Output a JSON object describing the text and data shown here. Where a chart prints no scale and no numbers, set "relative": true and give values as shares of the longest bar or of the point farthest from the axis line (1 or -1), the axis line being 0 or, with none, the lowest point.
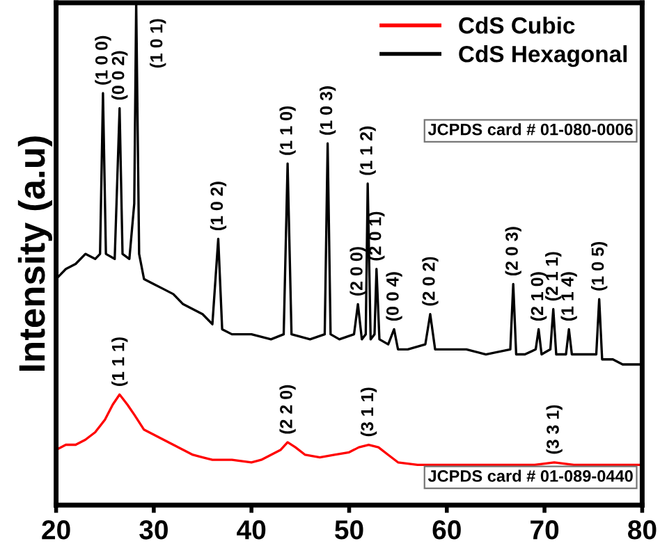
{
  "chart_data": {
    "type": "line",
    "relative": true,
    "ylabel": "Intensity (a.u)",
    "xlim": [
      20,
      80
    ],
    "xticks": [
      20,
      30,
      40,
      50,
      60,
      70,
      80
    ],
    "legend": "top right",
    "grid": false,
    "series": [
      {
        "name": "CdS Cubic",
        "color": "#ff0000",
        "x": [
          20,
          21,
          22,
          23,
          24,
          25,
          25.8,
          26.5,
          27.3,
          28,
          29,
          30,
          31,
          32,
          33,
          34,
          35,
          36,
          38,
          40,
          41,
          42,
          43,
          43.7,
          44.5,
          45.5,
          47,
          48.5,
          50,
          51,
          52,
          53,
          54,
          55,
          57,
          60,
          63,
          66,
          69,
          71,
          73,
          76,
          80
        ],
        "values": [
          0.11,
          0.12,
          0.12,
          0.13,
          0.145,
          0.17,
          0.2,
          0.22,
          0.2,
          0.18,
          0.15,
          0.14,
          0.13,
          0.12,
          0.11,
          0.1,
          0.095,
          0.09,
          0.09,
          0.085,
          0.09,
          0.1,
          0.11,
          0.125,
          0.115,
          0.1,
          0.095,
          0.1,
          0.105,
          0.115,
          0.12,
          0.115,
          0.1,
          0.085,
          0.08,
          0.08,
          0.08,
          0.08,
          0.08,
          0.085,
          0.08,
          0.08,
          0.08
        ]
      },
      {
        "name": "CdS Hexagonal",
        "color": "#000000",
        "x": [
          20,
          21,
          22,
          23,
          24,
          24.5,
          24.8,
          25.1,
          26,
          26.5,
          26.8,
          27.5,
          28,
          28.2,
          28.5,
          29,
          30,
          31,
          32,
          33,
          34,
          35,
          36,
          36.6,
          37,
          38,
          40,
          42,
          43.3,
          43.7,
          44.1,
          46,
          47.5,
          47.8,
          48.1,
          49,
          50.5,
          50.9,
          51.3,
          51.7,
          51.9,
          52.2,
          52.6,
          52.8,
          53.1,
          54,
          54.6,
          55,
          56,
          57.8,
          58.3,
          58.8,
          60,
          62,
          64,
          66.5,
          66.8,
          67.1,
          68,
          69.1,
          69.4,
          69.7,
          70.6,
          70.9,
          71.2,
          72.2,
          72.5,
          72.8,
          74,
          75.3,
          75.6,
          75.9,
          77,
          78,
          80
        ],
        "values": [
          0.45,
          0.47,
          0.48,
          0.5,
          0.49,
          0.5,
          0.82,
          0.5,
          0.49,
          0.79,
          0.5,
          0.49,
          0.6,
          1.0,
          0.5,
          0.45,
          0.44,
          0.43,
          0.42,
          0.4,
          0.39,
          0.38,
          0.36,
          0.53,
          0.35,
          0.34,
          0.34,
          0.33,
          0.34,
          0.68,
          0.34,
          0.33,
          0.34,
          0.72,
          0.34,
          0.33,
          0.34,
          0.4,
          0.33,
          0.34,
          0.64,
          0.33,
          0.34,
          0.47,
          0.33,
          0.32,
          0.35,
          0.31,
          0.31,
          0.32,
          0.38,
          0.31,
          0.31,
          0.31,
          0.3,
          0.31,
          0.44,
          0.3,
          0.3,
          0.31,
          0.35,
          0.3,
          0.31,
          0.39,
          0.3,
          0.3,
          0.35,
          0.3,
          0.3,
          0.3,
          0.41,
          0.29,
          0.29,
          0.28,
          0.28
        ]
      }
    ],
    "annotations": [
      {
        "text": "(1 0 0)",
        "x": 24.8,
        "y": 0.82
      },
      {
        "text": "(0 0 2)",
        "x": 26.5,
        "y": 0.79
      },
      {
        "text": "(1 0 1)",
        "x": 28.2,
        "y": 1.0
      },
      {
        "text": "(1 0 2)",
        "x": 36.6,
        "y": 0.53
      },
      {
        "text": "(1 1 0)",
        "x": 43.7,
        "y": 0.68
      },
      {
        "text": "(1 0 3)",
        "x": 47.8,
        "y": 0.72
      },
      {
        "text": "(2 0 0)",
        "x": 50.9,
        "y": 0.4
      },
      {
        "text": "(1 1 2)",
        "x": 51.9,
        "y": 0.64
      },
      {
        "text": "(2 0 1)",
        "x": 52.8,
        "y": 0.47
      },
      {
        "text": "(0 0 4)",
        "x": 54.6,
        "y": 0.35
      },
      {
        "text": "(2 0 2)",
        "x": 58.3,
        "y": 0.38
      },
      {
        "text": "(2 0 3)",
        "x": 66.8,
        "y": 0.44
      },
      {
        "text": "(2 1 0)",
        "x": 69.4,
        "y": 0.35
      },
      {
        "text": "(2 1 1)",
        "x": 70.9,
        "y": 0.39
      },
      {
        "text": "(1 1 4)",
        "x": 72.5,
        "y": 0.35
      },
      {
        "text": "(1 0 5)",
        "x": 75.6,
        "y": 0.41
      },
      {
        "text": "(1 1 1)",
        "x": 26.5,
        "y": 0.22
      },
      {
        "text": "(2 2 0)",
        "x": 43.7,
        "y": 0.125
      },
      {
        "text": "(3 1 1)",
        "x": 52,
        "y": 0.12
      },
      {
        "text": "(3 3 1)",
        "x": 71,
        "y": 0.085
      },
      "JCPDS card # 01-080-0006",
      "JCPDS card # 01-089-0440"
    ]
  }
}
